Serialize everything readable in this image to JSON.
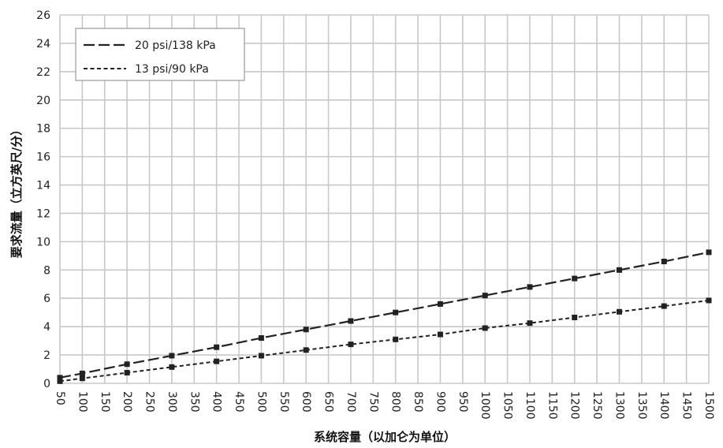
{
  "chart_data": {
    "type": "line",
    "title": "",
    "xlabel": "系统容量（以加仑为单位）",
    "ylabel": "要求流量（立方英尺/分）",
    "x_ticks": [
      50,
      100,
      150,
      200,
      250,
      300,
      350,
      400,
      450,
      500,
      550,
      600,
      650,
      700,
      750,
      800,
      850,
      900,
      950,
      1000,
      1050,
      1100,
      1150,
      1200,
      1250,
      1300,
      1350,
      1400,
      1450,
      1500
    ],
    "y_ticks": [
      0,
      2,
      4,
      6,
      8,
      10,
      12,
      14,
      16,
      18,
      20,
      22,
      24,
      26
    ],
    "xlim": [
      50,
      1500
    ],
    "ylim": [
      0,
      26
    ],
    "grid": true,
    "legend_position": "top-left",
    "series": [
      {
        "name": "20 psi/138 kPa",
        "line_style": "long-dash",
        "color": "#222222",
        "x": [
          50,
          100,
          200,
          300,
          400,
          500,
          600,
          700,
          800,
          900,
          1000,
          1100,
          1200,
          1300,
          1400,
          1500
        ],
        "y": [
          0.4,
          0.7,
          1.35,
          1.95,
          2.55,
          3.2,
          3.8,
          4.4,
          5.0,
          5.6,
          6.2,
          6.8,
          7.4,
          8.0,
          8.6,
          9.25
        ]
      },
      {
        "name": "13 psi/90 kPa",
        "line_style": "short-dash",
        "color": "#222222",
        "x": [
          50,
          100,
          200,
          300,
          400,
          500,
          600,
          700,
          800,
          900,
          1000,
          1100,
          1200,
          1300,
          1400,
          1500
        ],
        "y": [
          0.15,
          0.35,
          0.75,
          1.15,
          1.55,
          1.95,
          2.35,
          2.75,
          3.1,
          3.45,
          3.9,
          4.25,
          4.65,
          5.05,
          5.45,
          5.85
        ]
      }
    ]
  }
}
